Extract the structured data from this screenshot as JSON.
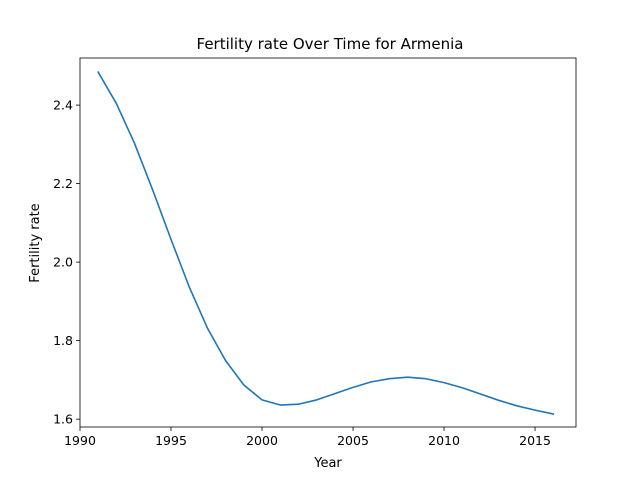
{
  "chart_data": {
    "type": "line",
    "title": "Fertility rate Over Time for Armenia",
    "xlabel": "Year",
    "ylabel": "Fertility rate",
    "xlim": [
      1990,
      2017.25
    ],
    "ylim": [
      1.58,
      2.52
    ],
    "xticks": [
      1990,
      1995,
      2000,
      2005,
      2010,
      2015
    ],
    "yticks": [
      1.6,
      1.8,
      2.0,
      2.2,
      2.4
    ],
    "ytick_labels": [
      "1.6",
      "1.8",
      "2.0",
      "2.2",
      "2.4"
    ],
    "grid": false,
    "series": [
      {
        "color": "#1f77b4",
        "x": [
          1991,
          1992,
          1993,
          1994,
          1995,
          1996,
          1997,
          1998,
          1999,
          2000,
          2001,
          2002,
          2003,
          2004,
          2005,
          2006,
          2007,
          2008,
          2009,
          2010,
          2011,
          2012,
          2013,
          2014,
          2015,
          2016
        ],
        "y": [
          2.484,
          2.404,
          2.302,
          2.183,
          2.058,
          1.937,
          1.832,
          1.749,
          1.687,
          1.649,
          1.636,
          1.638,
          1.649,
          1.665,
          1.681,
          1.695,
          1.703,
          1.707,
          1.703,
          1.693,
          1.68,
          1.664,
          1.648,
          1.634,
          1.623,
          1.613
        ]
      }
    ]
  }
}
